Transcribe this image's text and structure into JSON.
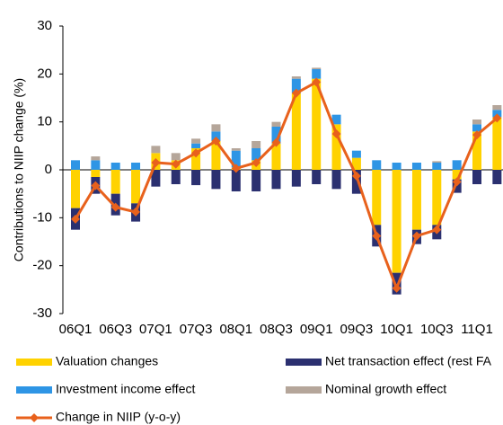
{
  "chart_data": {
    "type": "bar",
    "stacked": true,
    "y_label": "Contributions to NIIP change (%)",
    "categories": [
      "06Q1",
      null,
      "06Q3",
      null,
      "07Q1",
      null,
      "07Q3",
      null,
      "08Q1",
      null,
      "08Q3",
      null,
      "09Q1",
      null,
      "09Q3",
      null,
      "10Q1",
      null,
      "10Q3",
      null,
      "11Q1",
      null
    ],
    "ylim": [
      -30,
      30
    ],
    "yticks": [
      -30,
      -20,
      -10,
      0,
      10,
      20,
      30
    ],
    "series": [
      {
        "name": "Valuation changes",
        "color": "#ffd200",
        "values": [
          -8,
          -1.5,
          -5,
          -7,
          3.5,
          2,
          4.5,
          6,
          0.5,
          2,
          5.5,
          16,
          19,
          9.5,
          2.5,
          -11.5,
          -21.5,
          -12.5,
          -11.5,
          -2,
          8,
          11
        ]
      },
      {
        "name": "Net transaction effect (rest FA",
        "color": "#2b3070",
        "values": [
          -4.5,
          -3.5,
          -4.5,
          -3.8,
          -3.5,
          -3,
          -3.2,
          -4,
          -4.5,
          -4.5,
          -4,
          -3.5,
          -3,
          -4,
          -5,
          -4.5,
          -4.5,
          -3,
          -3,
          -2.8,
          -3,
          -3
        ]
      },
      {
        "name": "Investment income effect",
        "color": "#2e95e5",
        "values": [
          2,
          2,
          1.5,
          1.5,
          0,
          0,
          1,
          2,
          3.5,
          2.5,
          3.5,
          3,
          2,
          2,
          1.5,
          2,
          1.5,
          1.5,
          1.5,
          2,
          1.5,
          1.5
        ]
      },
      {
        "name": "Nominal growth effect",
        "color": "#b5a69a",
        "values": [
          0,
          0.8,
          0,
          0,
          1.5,
          1.5,
          1,
          1.5,
          0.5,
          1.5,
          1,
          0.5,
          0.3,
          0,
          0,
          0,
          0,
          0,
          0.3,
          0,
          1,
          1
        ]
      },
      {
        "name": "Change in NIIP (y-o-y)",
        "color": "#e8611c",
        "type": "line",
        "values": [
          -10.3,
          -3.3,
          -7.8,
          -8.8,
          1.5,
          1.2,
          3.5,
          6,
          0.3,
          1.5,
          5.7,
          16,
          18.3,
          7.5,
          -1.3,
          -13.8,
          -24.7,
          -13.8,
          -12.5,
          -2.5,
          7.3,
          10.8
        ]
      }
    ]
  }
}
